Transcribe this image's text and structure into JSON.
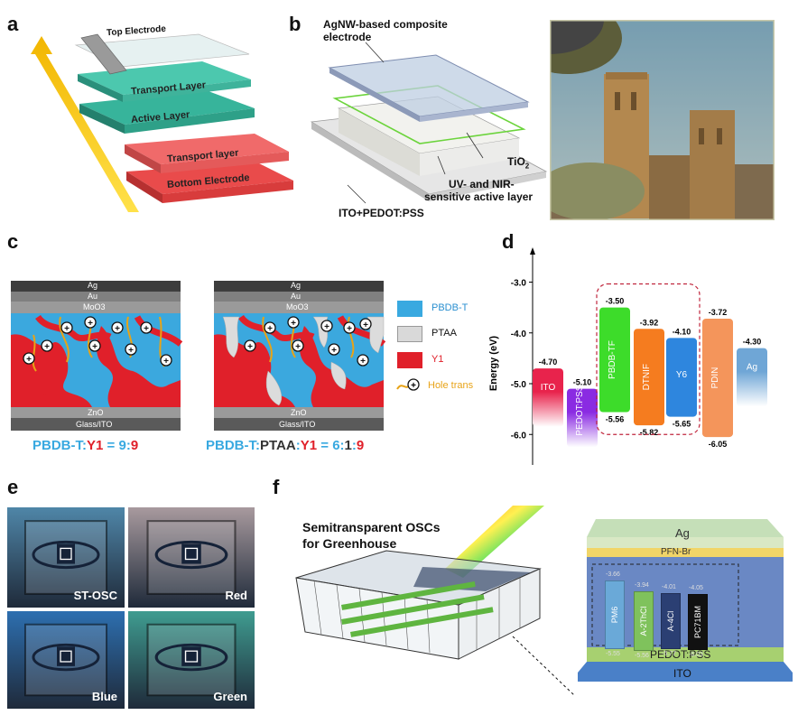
{
  "panels": {
    "a": "a",
    "b": "b",
    "c": "c",
    "d": "d",
    "e": "e",
    "f": "f"
  },
  "panel_a": {
    "top_electrode": "Top Electrode",
    "layers": [
      "Transport Layer",
      "Active Layer",
      "Transport layer",
      "Bottom Electrode"
    ]
  },
  "panel_b": {
    "agnw": "AgNW-based composite electrode",
    "agnw_l1": "AgNW-based composite",
    "agnw_l2": "electrode",
    "tio2": "TiO",
    "tio2_sub": "2",
    "active_l1": "UV- and NIR-",
    "active_l2": "sensitive active layer",
    "ito": "ITO+PEDOT:PSS"
  },
  "panel_c": {
    "left": {
      "top": [
        "Ag",
        "Au",
        "MoO3"
      ],
      "bottom": [
        "ZnO",
        "Glass/ITO"
      ]
    },
    "right": {
      "top": [
        "Ag",
        "Au",
        "MoO3"
      ],
      "bottom": [
        "ZnO",
        "Glass/ITO"
      ]
    },
    "legend": [
      {
        "label": "PBDB-T",
        "color": "#39a9e0"
      },
      {
        "label": "PTAA",
        "color": "#d9d9d9"
      },
      {
        "label": "Y1",
        "color": "#e0202a"
      },
      {
        "label": "Hole trans",
        "color": "#e8a317"
      }
    ],
    "caption_left": {
      "a": "PBDB-T",
      "sep1": ":",
      "b": "Y1",
      "eq": " = ",
      "n1": "9",
      "sep2": ":",
      "n2": "9"
    },
    "caption_right": {
      "a": "PBDB-T",
      "sep1": ":",
      "b": "PTAA",
      "sep2": ":",
      "c": "Y1",
      "eq": " = ",
      "n1": "6",
      "sep3": ":",
      "n2": "1",
      "sep4": ":",
      "n3": "9"
    }
  },
  "chart_data": {
    "type": "energy-level diagram",
    "ylabel": "Energy (eV)",
    "ylim": [
      -6.6,
      -2.6
    ],
    "yticks": [
      "-3.0",
      "-4.0",
      "-5.0",
      "-6.0"
    ],
    "levels": [
      {
        "name": "ITO",
        "top": -4.7,
        "bottom": null,
        "top_label": "-4.70",
        "bottom_label": "",
        "color": "#e8234c",
        "fade": true
      },
      {
        "name": "PEDOT:PSS",
        "top": -5.1,
        "bottom": null,
        "top_label": "-5.10",
        "bottom_label": "",
        "color": "#8a2be2",
        "fade": true
      },
      {
        "name": "PBDB-TF",
        "top": -3.5,
        "bottom": -5.56,
        "top_label": "-3.50",
        "bottom_label": "-5.56",
        "color": "#3ddc2a",
        "fade": false
      },
      {
        "name": "DTNIF",
        "top": -3.92,
        "bottom": -5.82,
        "top_label": "-3.92",
        "bottom_label": "-5.82",
        "color": "#f57c1f",
        "fade": false
      },
      {
        "name": "Y6",
        "top": -4.1,
        "bottom": -5.65,
        "top_label": "-4.10",
        "bottom_label": "-5.65",
        "color": "#2e86de",
        "fade": false
      },
      {
        "name": "PDIN",
        "top": -3.72,
        "bottom": -6.05,
        "top_label": "-3.72",
        "bottom_label": "-6.05",
        "color": "#f4955b",
        "fade": false
      },
      {
        "name": "Ag",
        "top": -4.3,
        "bottom": null,
        "top_label": "-4.30",
        "bottom_label": "",
        "color": "#6fa6d6",
        "fade": true
      }
    ]
  },
  "panel_e": {
    "photos": [
      {
        "label": "ST-OSC",
        "color": "#4f86a8"
      },
      {
        "label": "Red",
        "color": "#a89a9e"
      },
      {
        "label": "Blue",
        "color": "#2d6fb0"
      },
      {
        "label": "Green",
        "color": "#3f9c90"
      }
    ]
  },
  "panel_f": {
    "title_l1": "Semitransparent OSCs",
    "title_l2": "for Greenhouse",
    "stack": {
      "top": "Ag",
      "pfn": "PFN-Br",
      "pedot": "PEDOT:PSS",
      "ito": "ITO",
      "materials": [
        {
          "name": "PM6",
          "top": "-3.66",
          "bottom": "-5.55",
          "color": "#6aa9d8"
        },
        {
          "name": "A-2ThCl",
          "top": "-3.94",
          "bottom": "-5.56",
          "color": "#7fc25c"
        },
        {
          "name": "A-4Cl",
          "top": "-4.01",
          "bottom": "-5.77",
          "color": "#2b3f73"
        },
        {
          "name": "PC71BM",
          "top": "-4.05",
          "bottom": "-6.03",
          "color": "#111111"
        }
      ]
    }
  }
}
